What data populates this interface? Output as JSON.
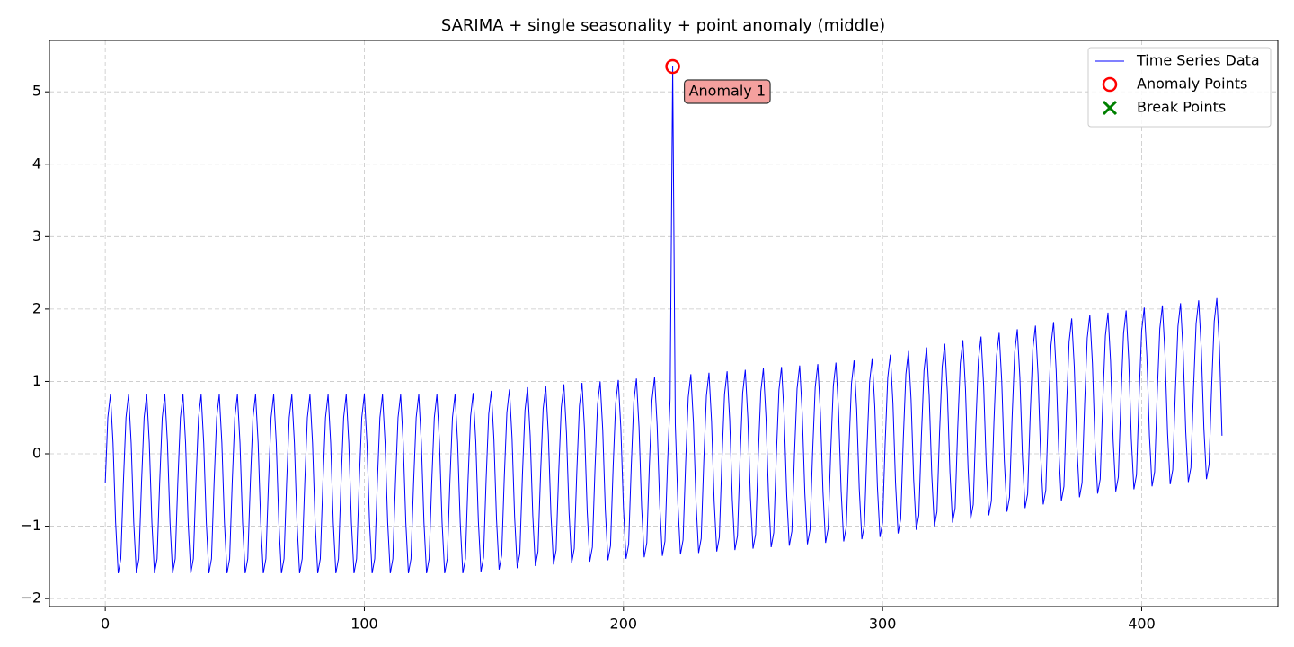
{
  "chart_data": {
    "type": "line",
    "title": "SARIMA + single seasonality + point anomaly (middle)",
    "xlim": [
      -21.55,
      452.55
    ],
    "ylim": [
      -2.11,
      5.71
    ],
    "xticks": [
      0,
      100,
      200,
      300,
      400
    ],
    "yticks": [
      {
        "value": -2,
        "label": "−2"
      },
      {
        "value": -1,
        "label": "−1"
      },
      0,
      1,
      2,
      3,
      4,
      5
    ],
    "grid": true,
    "legend": "upper right",
    "annotations": [
      {
        "text": "Anomaly 1",
        "x": 219,
        "y": 5.35
      }
    ],
    "series": [
      {
        "name": "Time Series Data",
        "color": "blue",
        "style": "line",
        "x": [
          0,
          1,
          2,
          3,
          4,
          5,
          6,
          7,
          8,
          9,
          10,
          11,
          12,
          13,
          14,
          15,
          16,
          17,
          18,
          19,
          20,
          21,
          22,
          23,
          24,
          25,
          26,
          27,
          28,
          29,
          30,
          31,
          32,
          33,
          34,
          35,
          36,
          37,
          38,
          39,
          40,
          41,
          42,
          43,
          44,
          45,
          46,
          47,
          48,
          49,
          50,
          51,
          52,
          53,
          54,
          55,
          56,
          57,
          58,
          59,
          60,
          61,
          62,
          63,
          64,
          65,
          66,
          67,
          68,
          69,
          70,
          71,
          72,
          73,
          74,
          75,
          76,
          77,
          78,
          79,
          80,
          81,
          82,
          83,
          84,
          85,
          86,
          87,
          88,
          89,
          90,
          91,
          92,
          93,
          94,
          95,
          96,
          97,
          98,
          99,
          100,
          101,
          102,
          103,
          104,
          105,
          106,
          107,
          108,
          109,
          110,
          111,
          112,
          113,
          114,
          115,
          116,
          117,
          118,
          119,
          120,
          121,
          122,
          123,
          124,
          125,
          126,
          127,
          128,
          129,
          130,
          131,
          132,
          133,
          134,
          135,
          136,
          137,
          138,
          139,
          140,
          141,
          142,
          143,
          144,
          145,
          146,
          147,
          148,
          149,
          150,
          151,
          152,
          153,
          154,
          155,
          156,
          157,
          158,
          159,
          160,
          161,
          162,
          163,
          164,
          165,
          166,
          167,
          168,
          169,
          170,
          171,
          172,
          173,
          174,
          175,
          176,
          177,
          178,
          179,
          180,
          181,
          182,
          183,
          184,
          185,
          186,
          187,
          188,
          189,
          190,
          191,
          192,
          193,
          194,
          195,
          196,
          197,
          198,
          199,
          200,
          201,
          202,
          203,
          204,
          205,
          206,
          207,
          208,
          209,
          210,
          211,
          212,
          213,
          214,
          215,
          216,
          217,
          218,
          219,
          220,
          221,
          222,
          223,
          224,
          225,
          226,
          227,
          228,
          229,
          230,
          231,
          232,
          233,
          234,
          235,
          236,
          237,
          238,
          239,
          240,
          241,
          242,
          243,
          244,
          245,
          246,
          247,
          248,
          249,
          250,
          251,
          252,
          253,
          254,
          255,
          256,
          257,
          258,
          259,
          260,
          261,
          262,
          263,
          264,
          265,
          266,
          267,
          268,
          269,
          270,
          271,
          272,
          273,
          274,
          275,
          276,
          277,
          278,
          279,
          280,
          281,
          282,
          283,
          284,
          285,
          286,
          287,
          288,
          289,
          290,
          291,
          292,
          293,
          294,
          295,
          296,
          297,
          298,
          299,
          300,
          301,
          302,
          303,
          304,
          305,
          306,
          307,
          308,
          309,
          310,
          311,
          312,
          313,
          314,
          315,
          316,
          317,
          318,
          319,
          320,
          321,
          322,
          323,
          324,
          325,
          326,
          327,
          328,
          329,
          330,
          331,
          332,
          333,
          334,
          335,
          336,
          337,
          338,
          339,
          340,
          341,
          342,
          343,
          344,
          345,
          346,
          347,
          348,
          349,
          350,
          351,
          352,
          353,
          354,
          355,
          356,
          357,
          358,
          359,
          360,
          361,
          362,
          363,
          364,
          365,
          366,
          367,
          368,
          369,
          370,
          371,
          372,
          373,
          374,
          375,
          376,
          377,
          378,
          379,
          380,
          381,
          382,
          383,
          384,
          385,
          386,
          387,
          388,
          389,
          390,
          391,
          392,
          393,
          394,
          395,
          396,
          397,
          398,
          399,
          400,
          401,
          402,
          403,
          404,
          405,
          406,
          407,
          408,
          409,
          410,
          411,
          412,
          413,
          414,
          415,
          416,
          417,
          418,
          419,
          420,
          421,
          422,
          423,
          424,
          425,
          426,
          427,
          428,
          429,
          430,
          431
        ],
        "values": [
          -0.4,
          0.5,
          0.82,
          0.15,
          -0.95,
          -1.65,
          -1.45,
          -0.4,
          0.5,
          0.82,
          0.15,
          -0.95,
          -1.65,
          -1.45,
          -0.4,
          0.5,
          0.82,
          0.15,
          -0.95,
          -1.65,
          -1.45,
          -0.4,
          0.5,
          0.82,
          0.15,
          -0.95,
          -1.65,
          -1.45,
          -0.4,
          0.5,
          0.82,
          0.15,
          -0.95,
          -1.65,
          -1.45,
          -0.4,
          0.5,
          0.82,
          0.15,
          -0.95,
          -1.65,
          -1.45,
          -0.4,
          0.5,
          0.82,
          0.15,
          -0.95,
          -1.65,
          -1.45,
          -0.4,
          0.5,
          0.82,
          0.15,
          -0.95,
          -1.65,
          -1.45,
          -0.4,
          0.5,
          0.82,
          0.15,
          -0.95,
          -1.65,
          -1.45,
          -0.4,
          0.5,
          0.82,
          0.15,
          -0.95,
          -1.65,
          -1.45,
          -0.4,
          0.5,
          0.82,
          0.15,
          -0.95,
          -1.65,
          -1.45,
          -0.4,
          0.5,
          0.82,
          0.15,
          -0.95,
          -1.65,
          -1.45,
          -0.4,
          0.5,
          0.82,
          0.15,
          -0.95,
          -1.65,
          -1.45,
          -0.4,
          0.5,
          0.82,
          0.15,
          -0.95,
          -1.65,
          -1.45,
          -0.4,
          0.5,
          0.82,
          0.15,
          -0.95,
          -1.65,
          -1.45,
          -0.4,
          0.5,
          0.82,
          0.15,
          -0.95,
          -1.65,
          -1.45,
          -0.4,
          0.5,
          0.82,
          0.15,
          -0.95,
          -1.65,
          -1.45,
          -0.4,
          0.5,
          0.82,
          0.15,
          -0.95,
          -1.65,
          -1.45,
          -0.4,
          0.5,
          0.82,
          0.15,
          -0.95,
          -1.65,
          -1.45,
          -0.4,
          0.5,
          0.82,
          0.15,
          -0.95,
          -1.65,
          -1.45,
          -0.38,
          0.52,
          0.84,
          0.17,
          -0.93,
          -1.63,
          -1.43,
          -0.35,
          0.55,
          0.87,
          0.2,
          -0.9,
          -1.6,
          -1.4,
          -0.33,
          0.57,
          0.89,
          0.22,
          -0.88,
          -1.58,
          -1.38,
          -0.3,
          0.6,
          0.92,
          0.25,
          -0.85,
          -1.55,
          -1.35,
          -0.28,
          0.62,
          0.94,
          0.27,
          -0.83,
          -1.53,
          -1.33,
          -0.26,
          0.64,
          0.96,
          0.29,
          -0.81,
          -1.51,
          -1.31,
          -0.24,
          0.66,
          0.98,
          0.31,
          -0.79,
          -1.49,
          -1.29,
          -0.22,
          0.68,
          1.0,
          0.33,
          -0.77,
          -1.47,
          -1.27,
          -0.2,
          0.7,
          1.02,
          0.35,
          -0.75,
          -1.45,
          -1.25,
          -0.18,
          0.72,
          1.04,
          0.37,
          -0.73,
          -1.43,
          -1.23,
          -0.16,
          0.74,
          1.06,
          0.39,
          -0.71,
          -1.41,
          -1.21,
          -0.14,
          0.76,
          5.35,
          0.41,
          -0.69,
          -1.39,
          -1.19,
          -0.12,
          0.78,
          1.1,
          0.43,
          -0.67,
          -1.37,
          -1.17,
          -0.1,
          0.8,
          1.12,
          0.45,
          -0.65,
          -1.35,
          -1.15,
          -0.08,
          0.82,
          1.14,
          0.47,
          -0.63,
          -1.33,
          -1.13,
          -0.06,
          0.84,
          1.16,
          0.49,
          -0.61,
          -1.31,
          -1.11,
          -0.04,
          0.86,
          1.18,
          0.51,
          -0.59,
          -1.29,
          -1.09,
          -0.02,
          0.88,
          1.2,
          0.53,
          -0.57,
          -1.27,
          -1.07,
          0,
          0.9,
          1.22,
          0.55,
          -0.55,
          -1.25,
          -1.05,
          0.02,
          0.92,
          1.24,
          0.57,
          -0.53,
          -1.23,
          -1.03,
          0.04,
          0.94,
          1.26,
          0.59,
          -0.51,
          -1.21,
          -1.01,
          0.07,
          0.97,
          1.29,
          0.62,
          -0.48,
          -1.18,
          -0.98,
          0.1,
          1.0,
          1.32,
          0.65,
          -0.45,
          -1.15,
          -0.95,
          0.15,
          1.05,
          1.37,
          0.7,
          -0.4,
          -1.1,
          -0.9,
          0.2,
          1.1,
          1.42,
          0.75,
          -0.35,
          -1.05,
          -0.85,
          0.25,
          1.15,
          1.47,
          0.8,
          -0.3,
          -1.0,
          -0.8,
          0.3,
          1.2,
          1.52,
          0.85,
          -0.25,
          -0.95,
          -0.75,
          0.35,
          1.25,
          1.57,
          0.9,
          -0.2,
          -0.9,
          -0.7,
          0.4,
          1.3,
          1.62,
          0.95,
          -0.15,
          -0.85,
          -0.65,
          0.45,
          1.35,
          1.67,
          1.0,
          -0.1,
          -0.8,
          -0.6,
          0.5,
          1.4,
          1.72,
          1.05,
          -0.05,
          -0.75,
          -0.55,
          0.55,
          1.45,
          1.77,
          1.1,
          0,
          -0.7,
          -0.5,
          0.6,
          1.5,
          1.82,
          1.15,
          0.05,
          -0.65,
          -0.45,
          0.65,
          1.55,
          1.87,
          1.2,
          0.1,
          -0.6,
          -0.4,
          0.7,
          1.6,
          1.92,
          1.25,
          0.15,
          -0.55,
          -0.35,
          0.73,
          1.63,
          1.95,
          1.28,
          0.18,
          -0.52,
          -0.32,
          0.76,
          1.66,
          1.98,
          1.31,
          0.21,
          -0.49,
          -0.29,
          0.8,
          1.7,
          2.02,
          1.35,
          0.25,
          -0.45,
          -0.25,
          0.83,
          1.73,
          2.05,
          1.38,
          0.28,
          -0.42,
          -0.22,
          0.86,
          1.76,
          2.08,
          1.41,
          0.31,
          -0.39,
          -0.19,
          0.9,
          1.8,
          2.12,
          1.45,
          0.35,
          -0.35,
          -0.15,
          0.93,
          1.83,
          2.15,
          1.48,
          0.25
        ]
      },
      {
        "name": "Anomaly Points",
        "color": "red",
        "style": "circle",
        "x": [
          219
        ],
        "values": [
          5.35
        ]
      },
      {
        "name": "Break Points",
        "color": "green",
        "style": "cross",
        "x": [],
        "values": []
      }
    ]
  }
}
